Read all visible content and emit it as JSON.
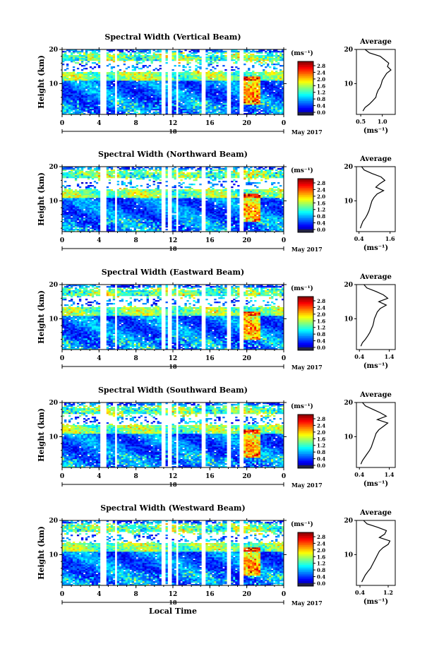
{
  "chart_data": [
    {
      "type": "heatmap",
      "title": "Spectral Width (Vertical Beam)",
      "ylabel": "Height (km)",
      "x_ticks": [
        "0",
        "4",
        "8",
        "12",
        "16",
        "20",
        "0"
      ],
      "y_ticks": [
        "10",
        "20"
      ],
      "day_label": "18",
      "month_label": "May 2017",
      "colorbar": {
        "unit": "(ms⁻¹)",
        "ticks": [
          "0.0",
          "0.4",
          "0.8",
          "1.2",
          "1.6",
          "2.0",
          "2.4",
          "2.8"
        ],
        "range": [
          0,
          3.0
        ]
      },
      "average": {
        "title": "Average",
        "xlabel": "(ms⁻¹)",
        "x_ticks": [
          "0.5",
          "1.0"
        ],
        "y_ticks": [
          "10",
          "20"
        ],
        "xlim": [
          0.4,
          1.3
        ],
        "heights": [
          2,
          3,
          4,
          5,
          6,
          7,
          8,
          9,
          10,
          11,
          12,
          13,
          14,
          15,
          16,
          17,
          18,
          19,
          20
        ],
        "values": [
          0.55,
          0.6,
          0.7,
          0.78,
          0.85,
          0.87,
          0.9,
          0.95,
          0.98,
          1.0,
          1.05,
          1.1,
          1.2,
          1.12,
          1.15,
          1.05,
          0.95,
          0.7,
          0.6
        ]
      }
    },
    {
      "type": "heatmap",
      "title": "Spectral Width (Northward Beam)",
      "ylabel": "Height (km)",
      "x_ticks": [
        "0",
        "4",
        "8",
        "12",
        "16",
        "20",
        "0"
      ],
      "y_ticks": [
        "10",
        "20"
      ],
      "day_label": "18",
      "month_label": "May 2017",
      "colorbar": {
        "unit": "(ms⁻¹)",
        "ticks": [
          "0.0",
          "0.4",
          "0.8",
          "1.2",
          "1.6",
          "2.0",
          "2.4",
          "2.8"
        ],
        "range": [
          0,
          3.0
        ]
      },
      "average": {
        "title": "Average",
        "xlabel": "(ms⁻¹)",
        "x_ticks": [
          "0.4",
          "1.6"
        ],
        "y_ticks": [
          "10",
          "20"
        ],
        "xlim": [
          0.3,
          1.8
        ],
        "heights": [
          2,
          3,
          4,
          5,
          6,
          7,
          8,
          9,
          10,
          11,
          12,
          13,
          14,
          15,
          16,
          17,
          18,
          19,
          20
        ],
        "values": [
          0.45,
          0.5,
          0.55,
          0.65,
          0.72,
          0.78,
          0.82,
          0.86,
          0.9,
          0.98,
          1.1,
          1.35,
          1.05,
          1.2,
          1.4,
          1.25,
          0.9,
          0.6,
          0.5
        ]
      }
    },
    {
      "type": "heatmap",
      "title": "Spectral Width (Eastward Beam)",
      "ylabel": "Height (km)",
      "x_ticks": [
        "0",
        "4",
        "8",
        "12",
        "16",
        "20",
        "0"
      ],
      "y_ticks": [
        "10",
        "20"
      ],
      "day_label": "18",
      "month_label": "May 2017",
      "colorbar": {
        "unit": "(ms⁻¹)",
        "ticks": [
          "0.0",
          "0.4",
          "0.8",
          "1.2",
          "1.6",
          "2.0",
          "2.4",
          "2.8"
        ],
        "range": [
          0,
          3.0
        ]
      },
      "average": {
        "title": "Average",
        "xlabel": "(ms⁻¹)",
        "x_ticks": [
          "0.4",
          "1.4"
        ],
        "y_ticks": [
          "10",
          "20"
        ],
        "xlim": [
          0.3,
          1.6
        ],
        "heights": [
          2,
          3,
          4,
          5,
          6,
          7,
          8,
          9,
          10,
          11,
          12,
          13,
          14,
          15,
          16,
          17,
          18,
          19,
          20
        ],
        "values": [
          0.45,
          0.5,
          0.6,
          0.68,
          0.75,
          0.8,
          0.85,
          0.88,
          0.9,
          0.95,
          1.0,
          1.1,
          1.3,
          1.05,
          1.35,
          1.2,
          0.95,
          0.65,
          0.55
        ]
      }
    },
    {
      "type": "heatmap",
      "title": "Spectral Width (Southward Beam)",
      "ylabel": "Height (km)",
      "x_ticks": [
        "0",
        "4",
        "8",
        "12",
        "16",
        "20",
        "0"
      ],
      "y_ticks": [
        "10",
        "20"
      ],
      "day_label": "18",
      "month_label": "May 2017",
      "colorbar": {
        "unit": "(ms⁻¹)",
        "ticks": [
          "0.0",
          "0.4",
          "0.8",
          "1.2",
          "1.6",
          "2.0",
          "2.4",
          "2.8"
        ],
        "range": [
          0,
          3.0
        ]
      },
      "average": {
        "title": "Average",
        "xlabel": "(ms⁻¹)",
        "x_ticks": [
          "0.4",
          "1.4"
        ],
        "y_ticks": [
          "10",
          "20"
        ],
        "xlim": [
          0.3,
          1.6
        ],
        "heights": [
          2,
          3,
          4,
          5,
          6,
          7,
          8,
          9,
          10,
          11,
          12,
          13,
          14,
          15,
          16,
          17,
          18,
          19,
          20
        ],
        "values": [
          0.45,
          0.5,
          0.58,
          0.66,
          0.74,
          0.8,
          0.84,
          0.88,
          0.92,
          0.96,
          1.05,
          1.2,
          1.35,
          1.0,
          1.3,
          1.1,
          0.85,
          0.6,
          0.5
        ]
      }
    },
    {
      "type": "heatmap",
      "title": "Spectral Width (Westward Beam)",
      "ylabel": "Height (km)",
      "xlabel": "Local Time",
      "x_ticks": [
        "0",
        "4",
        "8",
        "12",
        "16",
        "20",
        "0"
      ],
      "y_ticks": [
        "10",
        "20"
      ],
      "day_label": "18",
      "month_label": "May 2017",
      "colorbar": {
        "unit": "(ms⁻¹)",
        "ticks": [
          "0.0",
          "0.4",
          "0.8",
          "1.2",
          "1.6",
          "2.0",
          "2.4",
          "2.8"
        ],
        "range": [
          0,
          3.0
        ]
      },
      "average": {
        "title": "Average",
        "xlabel": "(ms⁻¹)",
        "x_ticks": [
          "0.4",
          "1.2"
        ],
        "y_ticks": [
          "10",
          "20"
        ],
        "xlim": [
          0.3,
          1.4
        ],
        "heights": [
          2,
          3,
          4,
          5,
          6,
          7,
          8,
          9,
          10,
          11,
          12,
          13,
          14,
          15,
          16,
          17,
          18,
          19,
          20
        ],
        "values": [
          0.45,
          0.5,
          0.55,
          0.62,
          0.7,
          0.75,
          0.8,
          0.85,
          0.9,
          0.95,
          1.05,
          1.2,
          1.25,
          0.95,
          1.1,
          1.15,
          0.9,
          0.6,
          0.5
        ]
      }
    }
  ]
}
